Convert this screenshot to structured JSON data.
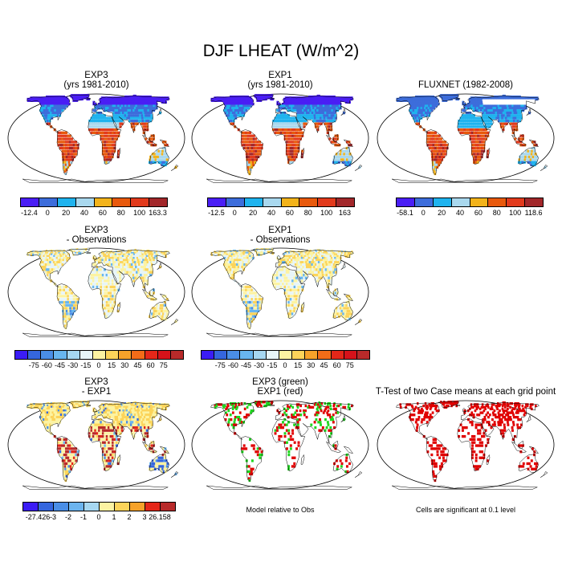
{
  "title": "DJF LHEAT (W/m^2)",
  "colors": {
    "land_colorbar": [
      "#4a1ef5",
      "#3d6ddb",
      "#1fb3ee",
      "#a9d8ee",
      "#f2b31b",
      "#e8590c",
      "#e23a1c",
      "#a2272a"
    ],
    "diff_colorbar": [
      "#3b1cf5",
      "#3566de",
      "#4a8ee6",
      "#68b6ef",
      "#a6d7f1",
      "#e7f5f8",
      "#fcf3a2",
      "#fcd45a",
      "#f6a22a",
      "#f26c18",
      "#e42719",
      "#d6121a",
      "#b82a2a"
    ],
    "bias_colorbar": [
      "#3b1cf5",
      "#3566de",
      "#4a8ee6",
      "#6cb4ee",
      "#a6d7f1",
      "#fcf3a2",
      "#fcd45a",
      "#f6a22a",
      "#e42719",
      "#b82a2a"
    ],
    "ttest_green": "#1fd61f",
    "ttest_red": "#e00000"
  },
  "chart_data": [
    {
      "type": "heatmap",
      "title": "EXP3",
      "subtitle": "(yrs 1981-2010)",
      "colorbar_ticks": [
        "-12.4",
        "0",
        "20",
        "40",
        "60",
        "80",
        "100",
        "163.3"
      ],
      "range": [
        -12.4,
        163.3
      ]
    },
    {
      "type": "heatmap",
      "title": "EXP1",
      "subtitle": "(yrs 1981-2010)",
      "colorbar_ticks": [
        "-12.5",
        "0",
        "20",
        "40",
        "60",
        "80",
        "100",
        "163"
      ],
      "range": [
        -12.5,
        163
      ]
    },
    {
      "type": "heatmap",
      "title": "FLUXNET (1982-2008)",
      "subtitle": "",
      "colorbar_ticks": [
        "-58.1",
        "0",
        "20",
        "40",
        "60",
        "80",
        "100",
        "118.6"
      ],
      "range": [
        -58.1,
        118.6
      ]
    },
    {
      "type": "heatmap",
      "title": "EXP3",
      "subtitle": "- Observations",
      "colorbar_ticks": [
        "-75",
        "-60",
        "-45",
        "-30",
        "-15",
        "0",
        "15",
        "30",
        "45",
        "60",
        "75"
      ]
    },
    {
      "type": "heatmap",
      "title": "EXP1",
      "subtitle": "- Observations",
      "colorbar_ticks": [
        "-75",
        "-60",
        "-45",
        "-30",
        "-15",
        "0",
        "15",
        "30",
        "45",
        "60",
        "75"
      ]
    },
    {
      "type": "heatmap",
      "title": "EXP3",
      "subtitle": "- EXP1",
      "colorbar_ticks": [
        "-27.426",
        "-3",
        "-2",
        "-1",
        "0",
        "1",
        "2",
        "3",
        "26.158"
      ],
      "range": [
        -27.426,
        26.158
      ]
    },
    {
      "type": "heatmap",
      "title": "EXP3 (green)",
      "subtitle": "EXP1 (red)",
      "legend": [
        "EXP3 (green)",
        "EXP1 (red)"
      ]
    },
    {
      "type": "heatmap",
      "title": "T-Test of two Case means at each grid point",
      "subtitle": ""
    }
  ],
  "notes": {
    "model_relative": "Model relative to Obs",
    "significance": "Cells are significant at 0.1 level"
  }
}
